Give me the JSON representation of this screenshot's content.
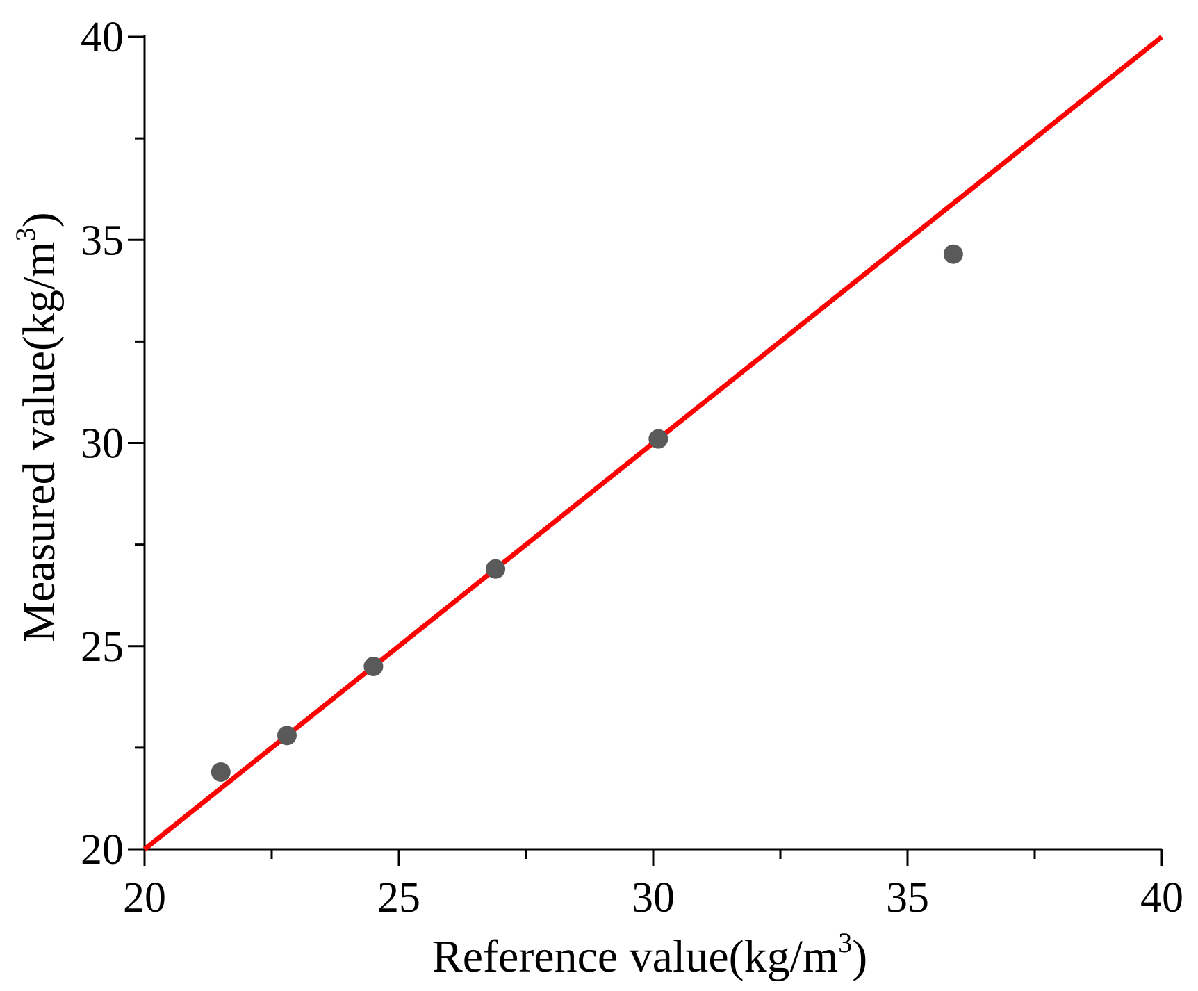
{
  "chart_data": {
    "type": "scatter",
    "title": "",
    "xlabel": {
      "text": "Reference value(kg/m",
      "sup": "3",
      "close": ")"
    },
    "ylabel": {
      "text": "Measured value(kg/m",
      "sup": "3",
      "close": ")"
    },
    "xlim": [
      20,
      40
    ],
    "ylim": [
      20,
      40
    ],
    "major_ticks": [
      20,
      25,
      30,
      35,
      40
    ],
    "minor_ticks": [
      22.5,
      27.5,
      32.5,
      37.5
    ],
    "grid": false,
    "legend": "none",
    "series": [
      {
        "kind": "points",
        "color": "#5a5a5a",
        "points": [
          {
            "x": 21.5,
            "y": 21.9
          },
          {
            "x": 22.8,
            "y": 22.8
          },
          {
            "x": 24.5,
            "y": 24.5
          },
          {
            "x": 26.9,
            "y": 26.9
          },
          {
            "x": 30.1,
            "y": 30.1
          },
          {
            "x": 35.9,
            "y": 34.65
          }
        ]
      },
      {
        "kind": "line",
        "color": "#ff0000",
        "points": [
          {
            "x": 20,
            "y": 20
          },
          {
            "x": 40,
            "y": 40
          }
        ]
      }
    ]
  }
}
